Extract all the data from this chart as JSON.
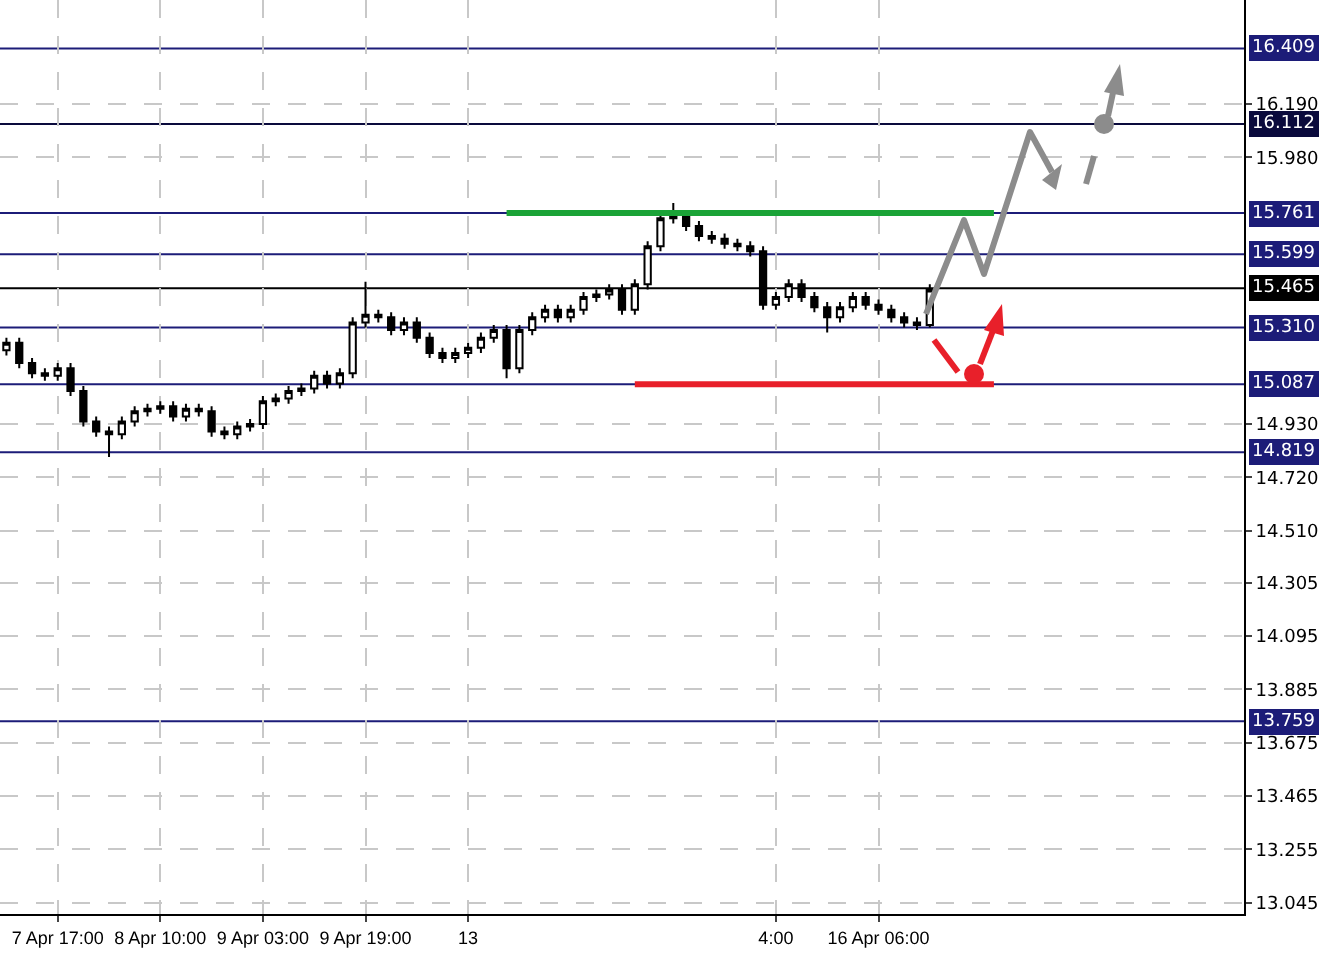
{
  "chart_data": {
    "type": "candlestick",
    "categories": [
      null,
      null,
      null,
      null,
      "7 Apr 17:00",
      null,
      null,
      null,
      null,
      null,
      null,
      null,
      "8 Apr 10:00",
      null,
      null,
      null,
      null,
      null,
      null,
      null,
      "9 Apr 03:00",
      null,
      null,
      null,
      null,
      null,
      null,
      null,
      "9 Apr 19:00",
      null,
      null,
      null,
      null,
      null,
      null,
      null,
      "13",
      null,
      null,
      null,
      null,
      null,
      null,
      null,
      null,
      null,
      null,
      null,
      null,
      null,
      null,
      null,
      null,
      null,
      null,
      null,
      null,
      null,
      null,
      null,
      "4:00",
      null,
      null,
      null,
      null,
      null,
      null,
      null,
      "16 Apr 06:00",
      null,
      null,
      null,
      null,
      null,
      null,
      null,
      null,
      null,
      null,
      null,
      null,
      null,
      null,
      null,
      null,
      null,
      null,
      null,
      null,
      null,
      null,
      null,
      null,
      null,
      null,
      null,
      null
    ],
    "ohlc": [
      [
        15.22,
        15.27,
        15.2,
        15.25
      ],
      [
        15.25,
        15.27,
        15.15,
        15.17
      ],
      [
        15.17,
        15.19,
        15.11,
        15.13
      ],
      [
        15.13,
        15.15,
        15.1,
        15.12
      ],
      [
        15.12,
        15.17,
        15.1,
        15.15
      ],
      [
        15.15,
        15.17,
        15.04,
        15.06
      ],
      [
        15.06,
        15.08,
        14.92,
        14.94
      ],
      [
        14.94,
        14.96,
        14.88,
        14.9
      ],
      [
        14.9,
        14.92,
        14.8,
        14.89
      ],
      [
        14.89,
        14.96,
        14.87,
        14.94
      ],
      [
        14.94,
        15.0,
        14.92,
        14.98
      ],
      [
        14.98,
        15.01,
        14.96,
        14.99
      ],
      [
        14.99,
        15.02,
        14.97,
        15.0
      ],
      [
        15.0,
        15.02,
        14.94,
        14.96
      ],
      [
        14.96,
        15.01,
        14.94,
        14.99
      ],
      [
        14.99,
        15.01,
        14.96,
        14.98
      ],
      [
        14.98,
        15.0,
        14.88,
        14.9
      ],
      [
        14.9,
        14.92,
        14.87,
        14.89
      ],
      [
        14.89,
        14.94,
        14.87,
        14.92
      ],
      [
        14.92,
        14.95,
        14.9,
        14.93
      ],
      [
        14.93,
        15.04,
        14.91,
        15.02
      ],
      [
        15.02,
        15.05,
        15.0,
        15.03
      ],
      [
        15.03,
        15.08,
        15.01,
        15.06
      ],
      [
        15.06,
        15.09,
        15.04,
        15.07
      ],
      [
        15.07,
        15.14,
        15.05,
        15.12
      ],
      [
        15.12,
        15.14,
        15.07,
        15.09
      ],
      [
        15.09,
        15.15,
        15.07,
        15.13
      ],
      [
        15.13,
        15.35,
        15.11,
        15.33
      ],
      [
        15.33,
        15.49,
        15.31,
        15.36
      ],
      [
        15.36,
        15.38,
        15.33,
        15.35
      ],
      [
        15.35,
        15.37,
        15.28,
        15.3
      ],
      [
        15.3,
        15.35,
        15.28,
        15.33
      ],
      [
        15.33,
        15.35,
        15.25,
        15.27
      ],
      [
        15.27,
        15.29,
        15.19,
        15.21
      ],
      [
        15.21,
        15.23,
        15.17,
        15.19
      ],
      [
        15.19,
        15.23,
        15.17,
        15.21
      ],
      [
        15.21,
        15.25,
        15.19,
        15.23
      ],
      [
        15.23,
        15.29,
        15.21,
        15.27
      ],
      [
        15.27,
        15.32,
        15.25,
        15.3
      ],
      [
        15.3,
        15.32,
        15.11,
        15.15
      ],
      [
        15.15,
        15.32,
        15.13,
        15.3
      ],
      [
        15.3,
        15.37,
        15.28,
        15.35
      ],
      [
        15.35,
        15.4,
        15.33,
        15.38
      ],
      [
        15.38,
        15.4,
        15.33,
        15.35
      ],
      [
        15.35,
        15.4,
        15.33,
        15.38
      ],
      [
        15.38,
        15.45,
        15.36,
        15.43
      ],
      [
        15.43,
        15.46,
        15.41,
        15.44
      ],
      [
        15.44,
        15.48,
        15.42,
        15.46
      ],
      [
        15.46,
        15.48,
        15.36,
        15.38
      ],
      [
        15.38,
        15.5,
        15.36,
        15.48
      ],
      [
        15.48,
        15.65,
        15.46,
        15.63
      ],
      [
        15.63,
        15.76,
        15.61,
        15.74
      ],
      [
        15.74,
        15.8,
        15.72,
        15.75
      ],
      [
        15.75,
        15.77,
        15.69,
        15.71
      ],
      [
        15.71,
        15.73,
        15.65,
        15.67
      ],
      [
        15.67,
        15.69,
        15.64,
        15.66
      ],
      [
        15.66,
        15.68,
        15.62,
        15.64
      ],
      [
        15.64,
        15.66,
        15.61,
        15.63
      ],
      [
        15.63,
        15.65,
        15.59,
        15.61
      ],
      [
        15.61,
        15.63,
        15.38,
        15.4
      ],
      [
        15.4,
        15.45,
        15.38,
        15.43
      ],
      [
        15.43,
        15.5,
        15.41,
        15.48
      ],
      [
        15.48,
        15.5,
        15.41,
        15.43
      ],
      [
        15.43,
        15.45,
        15.37,
        15.39
      ],
      [
        15.39,
        15.41,
        15.29,
        15.35
      ],
      [
        15.35,
        15.41,
        15.33,
        15.39
      ],
      [
        15.39,
        15.45,
        15.37,
        15.43
      ],
      [
        15.43,
        15.45,
        15.38,
        15.4
      ],
      [
        15.4,
        15.42,
        15.36,
        15.38
      ],
      [
        15.38,
        15.4,
        15.33,
        15.35
      ],
      [
        15.35,
        15.37,
        15.31,
        15.33
      ],
      [
        15.33,
        15.35,
        15.3,
        15.32
      ],
      [
        15.32,
        15.48,
        15.31,
        15.46
      ],
      null,
      null,
      null,
      null,
      null,
      null,
      null,
      null,
      null,
      null,
      null,
      null,
      null,
      null,
      null,
      null,
      null,
      null,
      null,
      null,
      null,
      null,
      null,
      null
    ],
    "series": [
      {
        "type": "line",
        "color": "#1aa337",
        "values": [
          null,
          null,
          null,
          null,
          null,
          null,
          null,
          null,
          null,
          null,
          null,
          null,
          null,
          null,
          null,
          null,
          null,
          null,
          null,
          null,
          null,
          null,
          null,
          null,
          null,
          null,
          null,
          null,
          null,
          null,
          null,
          null,
          null,
          null,
          null,
          null,
          null,
          null,
          null,
          15.761,
          15.761,
          15.761,
          15.761,
          15.761,
          15.761,
          15.761,
          15.761,
          15.761,
          15.761,
          15.761,
          15.761,
          15.761,
          15.761,
          15.761,
          15.761,
          15.761,
          15.761,
          15.761,
          15.761,
          15.761,
          15.761,
          15.761,
          15.761,
          15.761,
          15.761,
          15.761,
          15.761,
          15.761,
          15.761,
          15.761,
          15.761,
          15.761,
          15.761,
          15.761,
          15.761,
          15.761,
          15.761,
          15.761,
          null,
          null,
          null,
          null,
          null,
          null,
          null,
          null,
          null,
          null,
          null,
          null,
          null,
          null,
          null,
          null,
          null,
          null,
          null
        ]
      },
      {
        "type": "line",
        "color": "#e8202a",
        "values": [
          null,
          null,
          null,
          null,
          null,
          null,
          null,
          null,
          null,
          null,
          null,
          null,
          null,
          null,
          null,
          null,
          null,
          null,
          null,
          null,
          null,
          null,
          null,
          null,
          null,
          null,
          null,
          null,
          null,
          null,
          null,
          null,
          null,
          null,
          null,
          null,
          null,
          null,
          null,
          null,
          null,
          null,
          null,
          null,
          null,
          null,
          null,
          null,
          null,
          15.087,
          15.087,
          15.087,
          15.087,
          15.087,
          15.087,
          15.087,
          15.087,
          15.087,
          15.087,
          15.087,
          15.087,
          15.087,
          15.087,
          15.087,
          15.087,
          15.087,
          15.087,
          15.087,
          15.087,
          15.087,
          15.087,
          15.087,
          15.087,
          15.087,
          15.087,
          15.087,
          15.087,
          15.087,
          null,
          null,
          null,
          null,
          null,
          null,
          null,
          null,
          null,
          null,
          null,
          null,
          null,
          null,
          null,
          null,
          null,
          null,
          null
        ]
      }
    ],
    "ylim": [
      13.0,
      16.6
    ],
    "yticks": [
      13.045,
      13.255,
      13.465,
      13.675,
      13.885,
      14.095,
      14.305,
      {
        "value": 14.51,
        "label": "14.510"
      },
      {
        "value": 14.72,
        "label": "14.720"
      },
      {
        "value": 14.93,
        "label": "14.930"
      },
      {
        "value": 15.98,
        "label": "15.980"
      },
      {
        "value": 16.19,
        "label": "16.190"
      }
    ],
    "ref_lines": [
      {
        "axis": "y",
        "value": 16.409,
        "label": "16.409",
        "color": "#1c1c78"
      },
      {
        "axis": "y",
        "value": 16.112,
        "label": "16.112",
        "color": "#0a0a3c"
      },
      {
        "axis": "y",
        "value": 15.761,
        "label": "15.761",
        "color": "#1c1c78"
      },
      {
        "axis": "y",
        "value": 15.599,
        "label": "15.599",
        "color": "#1c1c78"
      },
      {
        "axis": "y",
        "value": 15.465,
        "label": "15.465",
        "color": "#000000"
      },
      {
        "axis": "y",
        "value": 15.31,
        "label": "15.310",
        "color": "#1c1c78"
      },
      {
        "axis": "y",
        "value": 15.087,
        "label": "15.087",
        "color": "#1c1c78"
      },
      {
        "axis": "y",
        "value": 14.819,
        "label": "14.819",
        "color": "#1c1c78"
      },
      {
        "axis": "y",
        "value": 13.759,
        "label": "13.759",
        "color": "#1c1c78"
      }
    ],
    "grid": true
  }
}
